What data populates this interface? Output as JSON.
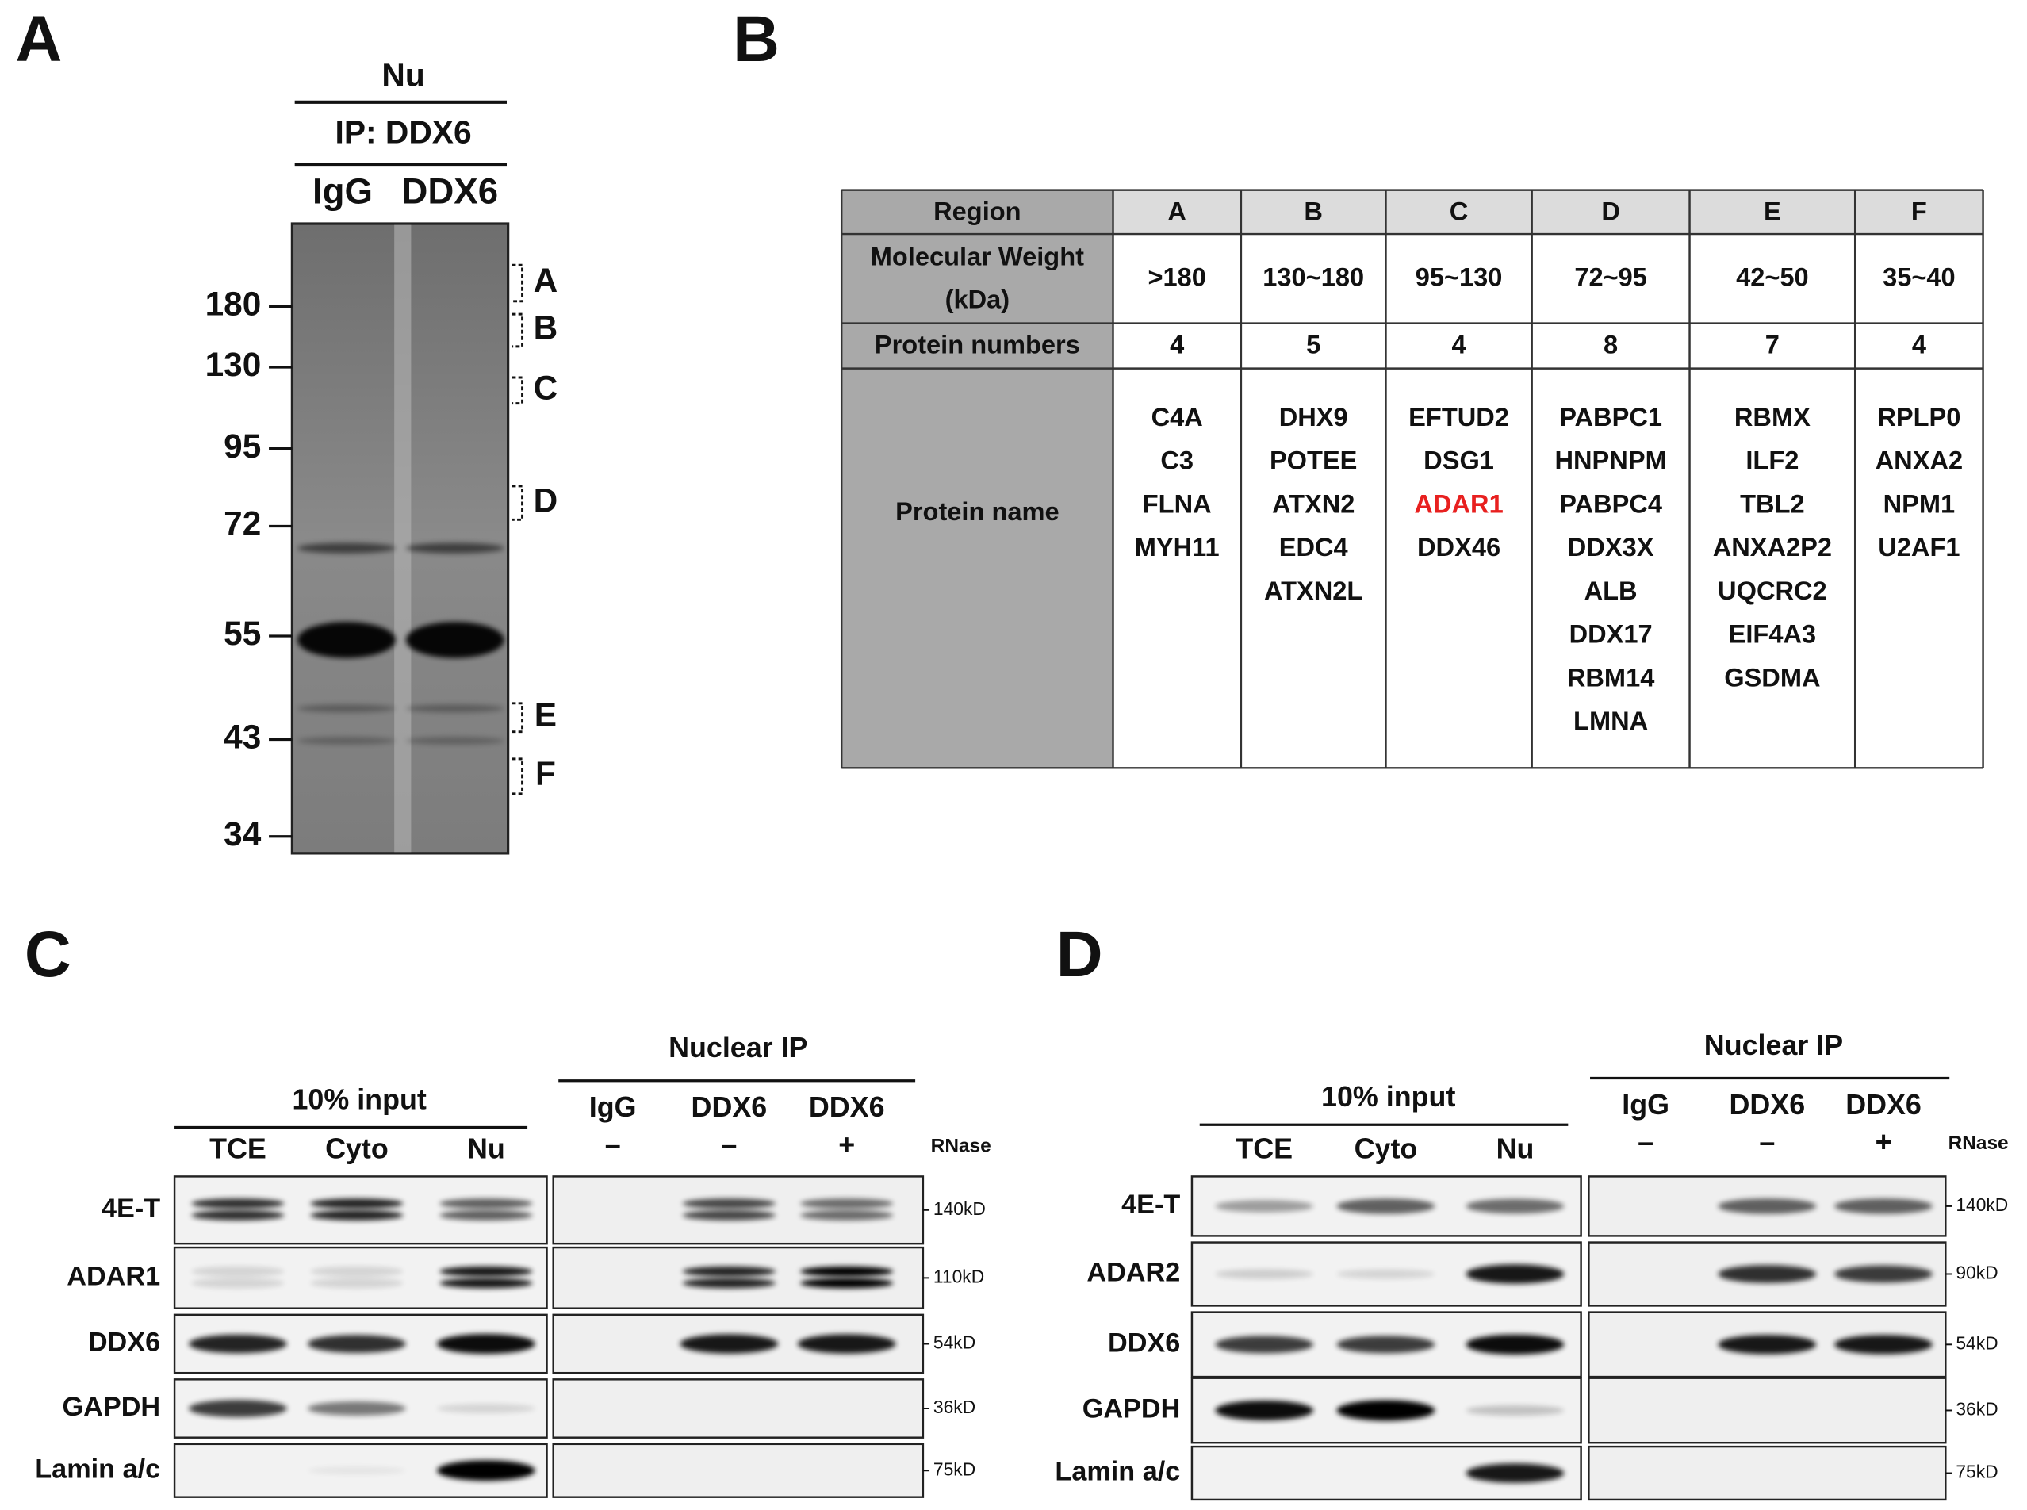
{
  "panel_a": {
    "label": "A",
    "header": "Nu",
    "ip": "IP: DDX6",
    "lanes": [
      "IgG",
      "DDX6"
    ],
    "markers": [
      "180",
      "130",
      "95",
      "72",
      "55",
      "43",
      "34"
    ],
    "regions": [
      "A",
      "B",
      "C",
      "D",
      "E",
      "F"
    ]
  },
  "panel_b": {
    "label": "B",
    "table": {
      "header": [
        "Region",
        "A",
        "B",
        "C",
        "D",
        "E",
        "F"
      ],
      "weight": {
        "label": [
          "Molecular Weight",
          "(kDa)"
        ],
        "values": [
          ">180",
          "130~180",
          "95~130",
          "72~95",
          "42~50",
          "35~40"
        ]
      },
      "count": {
        "label": "Protein numbers",
        "values": [
          4,
          5,
          4,
          8,
          7,
          4
        ]
      },
      "names": {
        "label": "Protein name",
        "values": [
          [
            "C4A",
            "C3",
            "FLNA",
            "MYH11"
          ],
          [
            "DHX9",
            "POTEE",
            "ATXN2",
            "EDC4",
            "ATXN2L"
          ],
          [
            "EFTUD2",
            "DSG1",
            {
              "name": "ADAR1",
              "color": "#e8201f"
            },
            "DDX46"
          ],
          [
            "PABPC1",
            "HNPNPM",
            "PABPC4",
            "DDX3X",
            "ALB",
            "DDX17",
            "RBM14",
            "LMNA"
          ],
          [
            "RBMX",
            "ILF2",
            "TBL2",
            "ANXA2P2",
            "UQCRC2",
            "EIF4A3",
            "GSDMA"
          ],
          [
            "RPLP0",
            "ANXA2",
            "NPM1",
            "U2AF1"
          ]
        ]
      }
    }
  },
  "panel_c": {
    "label": "C",
    "input": "10% input",
    "input_lanes": [
      "TCE",
      "Cyto",
      "Nu"
    ],
    "ip": "Nuclear IP",
    "ip_lanes": [
      {
        "name": "IgG",
        "rnase": "–"
      },
      {
        "name": "DDX6",
        "rnase": "–"
      },
      {
        "name": "DDX6",
        "rnase": "+"
      }
    ],
    "rnase": "RNase",
    "rows": [
      {
        "protein": "4E-T",
        "size": "140kD"
      },
      {
        "protein": "ADAR1",
        "size": "110kD"
      },
      {
        "protein": "DDX6",
        "size": "54kD"
      },
      {
        "protein": "GAPDH",
        "size": "36kD"
      },
      {
        "protein": "Lamin a/c",
        "size": "75kD"
      }
    ]
  },
  "panel_d": {
    "label": "D",
    "input": "10% input",
    "input_lanes": [
      "TCE",
      "Cyto",
      "Nu"
    ],
    "ip": "Nuclear IP",
    "ip_lanes": [
      {
        "name": "IgG",
        "rnase": "–"
      },
      {
        "name": "DDX6",
        "rnase": "–"
      },
      {
        "name": "DDX6",
        "rnase": "+"
      }
    ],
    "rnase": "RNase",
    "rows": [
      {
        "protein": "4E-T",
        "size": "140kD"
      },
      {
        "protein": "ADAR2",
        "size": "90kD"
      },
      {
        "protein": "DDX6",
        "size": "54kD"
      },
      {
        "protein": "GAPDH",
        "size": "36kD"
      },
      {
        "protein": "Lamin a/c",
        "size": "75kD"
      }
    ]
  }
}
